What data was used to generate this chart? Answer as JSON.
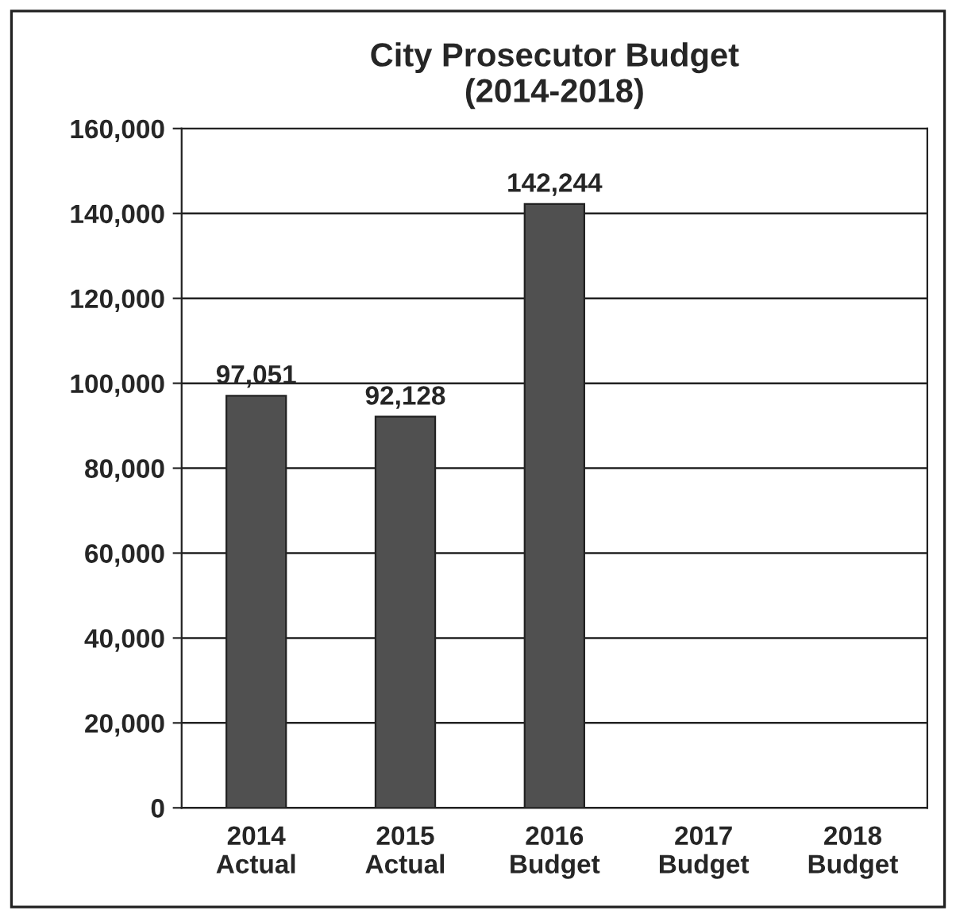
{
  "chart_data": {
    "type": "bar",
    "title": "City Prosecutor Budget\n(2014-2018)",
    "categories": [
      "2014\nActual",
      "2015\nActual",
      "2016\nBudget",
      "2017\nBudget",
      "2018\nBudget"
    ],
    "values": [
      97051,
      92128,
      142244,
      null,
      null
    ],
    "value_labels": [
      "97,051",
      "92,128",
      "142,244",
      null,
      null
    ],
    "color": "#505050",
    "ylim": [
      0,
      160000
    ],
    "yticks": [
      {
        "value": 0,
        "label": "0"
      },
      {
        "value": 20000,
        "label": "20,000"
      },
      {
        "value": 40000,
        "label": "40,000"
      },
      {
        "value": 60000,
        "label": "60,000"
      },
      {
        "value": 80000,
        "label": "80,000"
      },
      {
        "value": 100000,
        "label": "100,000"
      },
      {
        "value": 120000,
        "label": "120,000"
      },
      {
        "value": 140000,
        "label": "140,000"
      },
      {
        "value": 160000,
        "label": "160,000"
      }
    ],
    "grid": "y",
    "legend": false
  }
}
